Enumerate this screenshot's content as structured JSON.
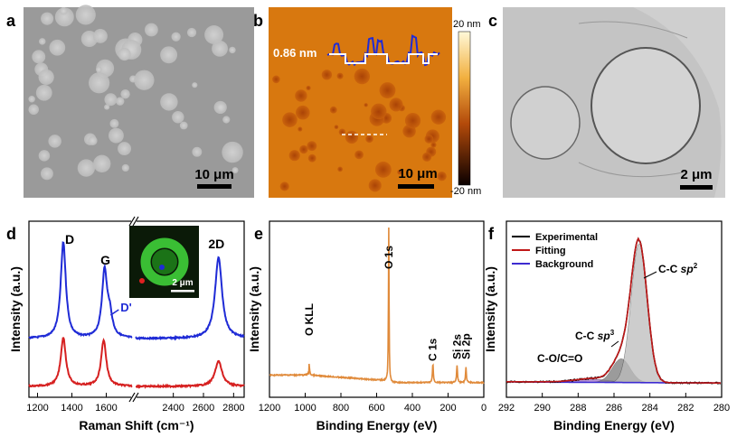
{
  "panels": {
    "a": {
      "label": "a",
      "scale_bar": "10 μm"
    },
    "b": {
      "label": "b",
      "scale_bar": "10 μm",
      "height_annotation": "0.86 nm",
      "colorbar": {
        "max": "20 nm",
        "min": "-20 nm"
      }
    },
    "c": {
      "label": "c",
      "scale_bar": "2 μm"
    },
    "d": {
      "label": "d",
      "inset_scale_bar": "2 μm"
    },
    "e": {
      "label": "e"
    },
    "f": {
      "label": "f"
    }
  },
  "colors": {
    "blue": "#1f2bd6",
    "red": "#d62020",
    "orange": "#e08a3a",
    "afm_orange": "#d8780f",
    "experimental": "#000000",
    "fitting": "#c01818",
    "background": "#3d2bd0"
  },
  "chart_data": [
    {
      "id": "d",
      "type": "line",
      "xlabel": "Raman Shift (cm⁻¹)",
      "ylabel": "Intensity (a.u.)",
      "xlim": [
        1150,
        2870
      ],
      "axis_break": [
        1750,
        2150
      ],
      "xticks": [
        "1200",
        "1400",
        "1600",
        "2400",
        "2600",
        "2800"
      ],
      "peak_labels": [
        "D",
        "G",
        "D'",
        "2D"
      ],
      "series": [
        {
          "name": "blue",
          "peaks": [
            {
              "x": 1350,
              "h": 0.95
            },
            {
              "x": 1590,
              "h": 0.65
            },
            {
              "x": 1620,
              "h": 0.2
            },
            {
              "x": 2700,
              "h": 0.8
            }
          ]
        },
        {
          "name": "red",
          "peaks": [
            {
              "x": 1350,
              "h": 0.58
            },
            {
              "x": 1585,
              "h": 0.55
            },
            {
              "x": 2700,
              "h": 0.3
            }
          ]
        }
      ]
    },
    {
      "id": "e",
      "type": "line",
      "xlabel": "Binding Energy (eV)",
      "ylabel": "Intensity (a.u.)",
      "xlim": [
        1200,
        0
      ],
      "xticks": [
        "1200",
        "1000",
        "800",
        "600",
        "400",
        "200",
        "0"
      ],
      "peak_labels": [
        {
          "text": "O KLL",
          "x": 978
        },
        {
          "text": "O 1s",
          "x": 532
        },
        {
          "text": "C 1s",
          "x": 285
        },
        {
          "text": "Si 2s",
          "x": 150
        },
        {
          "text": "Si 2p",
          "x": 100
        }
      ],
      "peaks": [
        {
          "x": 532,
          "h": 0.82
        },
        {
          "x": 978,
          "h": 0.06
        },
        {
          "x": 285,
          "h": 0.1
        },
        {
          "x": 150,
          "h": 0.09
        },
        {
          "x": 100,
          "h": 0.08
        }
      ]
    },
    {
      "id": "f",
      "type": "line",
      "xlabel": "Binding Energy (eV)",
      "ylabel": "Intensity (a.u.)",
      "xlim": [
        292,
        280
      ],
      "xticks": [
        "292",
        "290",
        "288",
        "286",
        "284",
        "282",
        "280"
      ],
      "legend": [
        "Experimental",
        "Fitting",
        "Background"
      ],
      "annotations": [
        {
          "text": "C-C sp²",
          "name": "C-C",
          "sub": "sp",
          "sup": "2"
        },
        {
          "text": "C-C sp³",
          "name": "C-C",
          "sub": "sp",
          "sup": "3"
        },
        {
          "text": "C-O/C=O"
        }
      ],
      "components": [
        {
          "name": "C-C sp2",
          "center": 284.6,
          "h": 0.88,
          "w": 0.45
        },
        {
          "name": "C-C sp3",
          "center": 285.6,
          "h": 0.15,
          "w": 0.5
        },
        {
          "name": "C-O/C=O",
          "center": 287.2,
          "h": 0.02,
          "w": 0.9
        }
      ]
    }
  ]
}
